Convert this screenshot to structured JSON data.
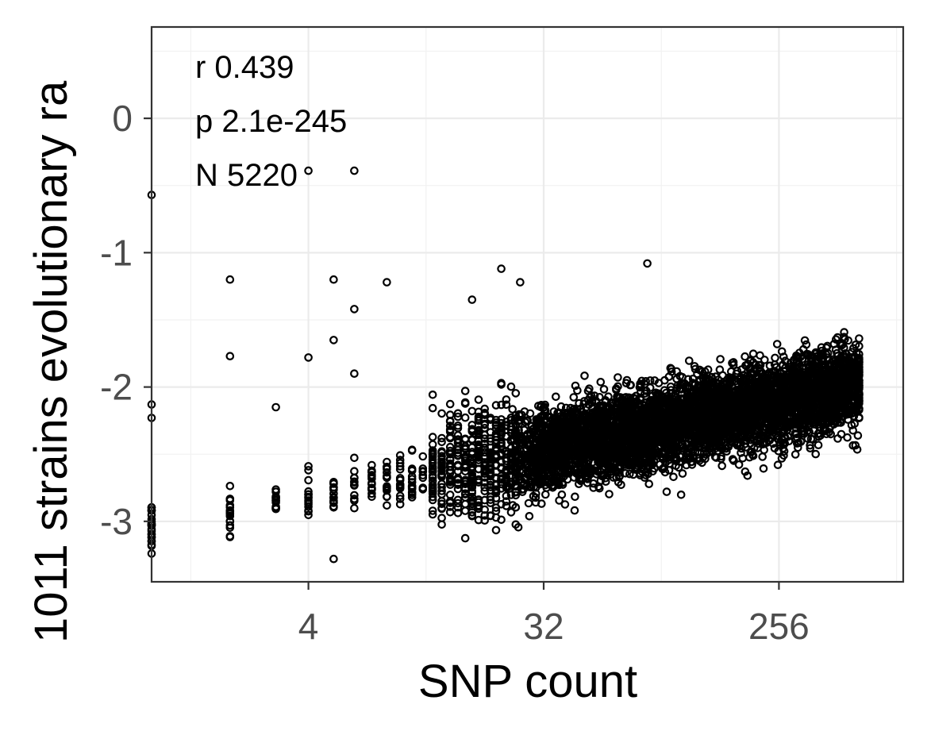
{
  "chart_data": {
    "type": "scatter",
    "title": "",
    "xlabel": "SNP count",
    "ylabel": "1011 strains evolutionary ra",
    "x_scale": "log2",
    "xlim": [
      1,
      768
    ],
    "ylim": [
      -3.45,
      0.68
    ],
    "x_ticks": [
      4,
      32,
      256
    ],
    "x_tick_labels": [
      "4",
      "32",
      "256"
    ],
    "y_ticks": [
      0,
      -1,
      -2,
      -3
    ],
    "y_tick_labels": [
      "0",
      "-1",
      "-2",
      "-3"
    ],
    "grid": true,
    "legend": "none",
    "annotations": [
      "r 0.439",
      "p 2.1e-245",
      "N 5220"
    ],
    "stats": {
      "r": 0.439,
      "p": "2.1e-245",
      "N": 5220
    },
    "outliers": [
      {
        "x": 1,
        "y": -0.57
      },
      {
        "x": 4,
        "y": -0.39
      },
      {
        "x": 6,
        "y": -0.39
      },
      {
        "x": 2,
        "y": -1.2
      },
      {
        "x": 5,
        "y": -1.2
      },
      {
        "x": 8,
        "y": -1.22
      },
      {
        "x": 6,
        "y": -1.42
      },
      {
        "x": 5,
        "y": -1.65
      },
      {
        "x": 2,
        "y": -1.77
      },
      {
        "x": 4,
        "y": -1.78
      },
      {
        "x": 6,
        "y": -1.9
      },
      {
        "x": 1,
        "y": -2.13
      },
      {
        "x": 1,
        "y": -2.23
      },
      {
        "x": 3,
        "y": -2.15
      },
      {
        "x": 1,
        "y": -2.92
      },
      {
        "x": 4,
        "y": -2.59
      },
      {
        "x": 5,
        "y": -3.28
      },
      {
        "x": 17,
        "y": -1.35
      },
      {
        "x": 22,
        "y": -1.12
      },
      {
        "x": 26,
        "y": -1.22
      },
      {
        "x": 80,
        "y": -1.08
      },
      {
        "x": 190,
        "y": -2.63
      },
      {
        "x": 370,
        "y": -2.36
      },
      {
        "x": 430,
        "y": -1.63
      },
      {
        "x": 520,
        "y": -1.95
      },
      {
        "x": 340,
        "y": -1.78
      }
    ],
    "point_density": {
      "x_min": 1,
      "x_max": 520,
      "low_x_y_range": [
        -3.2,
        -2.5
      ],
      "core_x_range": [
        26,
        256
      ],
      "core_y_range": [
        -2.8,
        -1.6
      ],
      "trend": "increasing"
    }
  }
}
